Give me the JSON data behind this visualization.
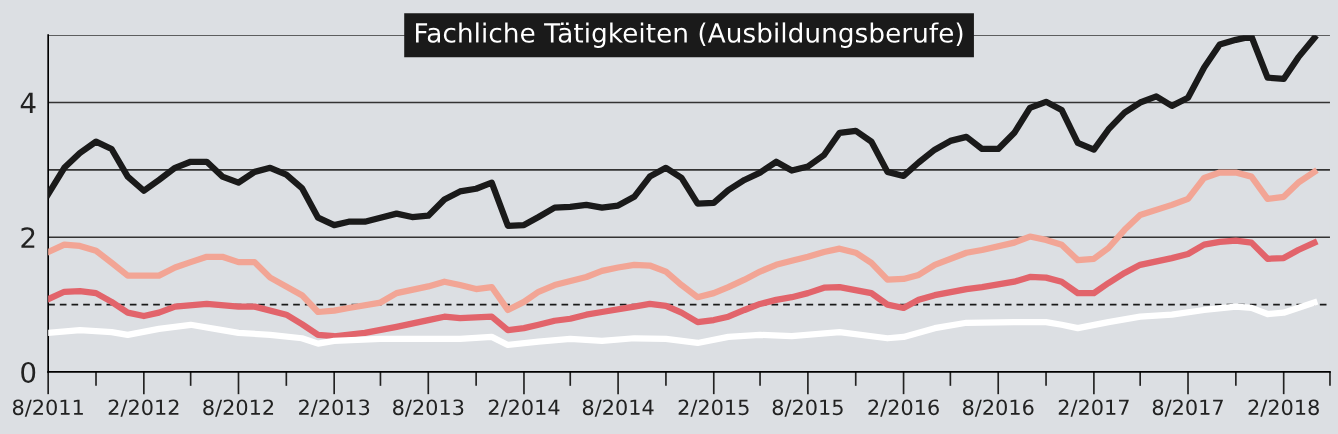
{
  "chart_data": {
    "type": "line",
    "title": "Fachliche Tätigkeiten (Ausbildungsberufe)",
    "x": [
      "2011-08",
      "2011-09",
      "2011-10",
      "2011-11",
      "2011-12",
      "2012-01",
      "2012-02",
      "2012-03",
      "2012-04",
      "2012-05",
      "2012-06",
      "2012-07",
      "2012-08",
      "2012-09",
      "2012-10",
      "2012-11",
      "2012-12",
      "2013-01",
      "2013-02",
      "2013-03",
      "2013-04",
      "2013-05",
      "2013-06",
      "2013-07",
      "2013-08",
      "2013-09",
      "2013-10",
      "2013-11",
      "2013-12",
      "2014-01",
      "2014-02",
      "2014-03",
      "2014-04",
      "2014-05",
      "2014-06",
      "2014-07",
      "2014-08",
      "2014-09",
      "2014-10",
      "2014-11",
      "2014-12",
      "2015-01",
      "2015-02",
      "2015-03",
      "2015-04",
      "2015-05",
      "2015-06",
      "2015-07",
      "2015-08",
      "2015-09",
      "2015-10",
      "2015-11",
      "2015-12",
      "2016-01",
      "2016-02",
      "2016-03",
      "2016-04",
      "2016-05",
      "2016-06",
      "2016-07",
      "2016-08",
      "2016-09",
      "2016-10",
      "2016-11",
      "2016-12",
      "2017-01",
      "2017-02",
      "2017-03",
      "2017-04",
      "2017-05",
      "2017-06",
      "2017-07",
      "2017-08",
      "2017-09",
      "2017-10",
      "2017-11",
      "2017-12",
      "2018-01",
      "2018-02",
      "2018-03",
      "2018-04"
    ],
    "series": [
      {
        "color": "#1a1a1a",
        "values": [
          2.64,
          3.03,
          3.25,
          3.42,
          3.31,
          2.9,
          2.69,
          2.85,
          3.03,
          3.12,
          3.12,
          2.9,
          2.81,
          2.97,
          3.03,
          2.93,
          2.73,
          2.29,
          2.18,
          2.23,
          2.23,
          2.29,
          2.35,
          2.3,
          2.32,
          2.56,
          2.68,
          2.72,
          2.81,
          2.17,
          2.18,
          2.3,
          2.44,
          2.45,
          2.48,
          2.44,
          2.47,
          2.6,
          2.9,
          3.03,
          2.88,
          2.5,
          2.51,
          2.7,
          2.85,
          2.96,
          3.12,
          2.99,
          3.05,
          3.22,
          3.55,
          3.58,
          3.42,
          2.97,
          2.91,
          3.11,
          3.3,
          3.43,
          3.49,
          3.31,
          3.31,
          3.55,
          3.92,
          4.01,
          3.89,
          3.4,
          3.3,
          3.6,
          3.85,
          4.0,
          4.09,
          3.95,
          4.07,
          4.52,
          4.86,
          4.93,
          4.98,
          4.37,
          4.35,
          4.67,
          4.96
        ]
      },
      {
        "color": "#f2a595",
        "x": [
          "2011-08",
          "2011-09",
          "2011-10",
          "2011-11",
          "2011-12",
          "2012-01",
          "2012-03",
          "2012-04",
          "2012-05",
          "2012-06",
          "2012-07",
          "2012-08",
          "2012-09",
          "2012-10",
          "2012-12",
          "2013-01",
          "2013-02",
          "2013-03",
          "2013-05",
          "2013-06",
          "2013-08",
          "2013-09",
          "2013-10",
          "2013-11",
          "2013-12",
          "2014-01",
          "2014-02",
          "2014-03",
          "2014-04",
          "2014-06",
          "2014-07",
          "2014-08",
          "2014-09",
          "2014-10",
          "2014-11",
          "2014-12",
          "2015-01",
          "2015-02",
          "2015-03",
          "2015-04",
          "2015-05",
          "2015-06",
          "2015-07",
          "2015-08",
          "2015-09",
          "2015-10",
          "2015-11",
          "2015-12",
          "2016-01",
          "2016-02",
          "2016-03",
          "2016-04",
          "2016-06",
          "2016-07",
          "2016-09",
          "2016-10",
          "2016-11",
          "2016-12",
          "2017-01",
          "2017-02",
          "2017-03",
          "2017-04",
          "2017-05",
          "2017-07",
          "2017-08",
          "2017-09",
          "2017-10",
          "2017-11",
          "2017-12",
          "2018-01",
          "2018-02",
          "2018-03",
          "2018-04"
        ],
        "values": [
          1.78,
          1.89,
          1.87,
          1.8,
          1.62,
          1.43,
          1.43,
          1.55,
          1.63,
          1.71,
          1.71,
          1.63,
          1.63,
          1.4,
          1.14,
          0.89,
          0.91,
          0.95,
          1.03,
          1.17,
          1.27,
          1.34,
          1.29,
          1.23,
          1.26,
          0.92,
          1.04,
          1.19,
          1.29,
          1.41,
          1.5,
          1.55,
          1.59,
          1.58,
          1.49,
          1.29,
          1.11,
          1.17,
          1.26,
          1.37,
          1.49,
          1.59,
          1.65,
          1.71,
          1.78,
          1.83,
          1.77,
          1.62,
          1.37,
          1.38,
          1.44,
          1.59,
          1.77,
          1.81,
          1.92,
          2.01,
          1.96,
          1.89,
          1.66,
          1.68,
          1.84,
          2.11,
          2.33,
          2.48,
          2.57,
          2.88,
          2.96,
          2.96,
          2.9,
          2.57,
          2.6,
          2.81,
          2.97
        ]
      },
      {
        "color": "#e2646b",
        "x": [
          "2011-08",
          "2011-09",
          "2011-10",
          "2011-11",
          "2011-12",
          "2012-01",
          "2012-02",
          "2012-03",
          "2012-04",
          "2012-06",
          "2012-08",
          "2012-09",
          "2012-11",
          "2012-12",
          "2013-01",
          "2013-02",
          "2013-04",
          "2013-06",
          "2013-08",
          "2013-09",
          "2013-10",
          "2013-12",
          "2014-01",
          "2014-02",
          "2014-03",
          "2014-04",
          "2014-05",
          "2014-06",
          "2014-07",
          "2014-09",
          "2014-10",
          "2014-11",
          "2014-12",
          "2015-01",
          "2015-02",
          "2015-03",
          "2015-04",
          "2015-05",
          "2015-06",
          "2015-07",
          "2015-08",
          "2015-09",
          "2015-10",
          "2015-12",
          "2016-01",
          "2016-02",
          "2016-03",
          "2016-04",
          "2016-06",
          "2016-07",
          "2016-09",
          "2016-10",
          "2016-11",
          "2016-12",
          "2017-01",
          "2017-02",
          "2017-03",
          "2017-04",
          "2017-05",
          "2017-07",
          "2017-08",
          "2017-09",
          "2017-10",
          "2017-11",
          "2017-12",
          "2018-01",
          "2018-02",
          "2018-03",
          "2018-04"
        ],
        "values": [
          1.08,
          1.19,
          1.2,
          1.17,
          1.04,
          0.88,
          0.83,
          0.88,
          0.97,
          1.01,
          0.97,
          0.97,
          0.85,
          0.71,
          0.55,
          0.53,
          0.58,
          0.67,
          0.77,
          0.82,
          0.8,
          0.82,
          0.62,
          0.65,
          0.7,
          0.76,
          0.79,
          0.85,
          0.89,
          0.97,
          1.01,
          0.98,
          0.88,
          0.74,
          0.77,
          0.82,
          0.92,
          1.01,
          1.07,
          1.11,
          1.17,
          1.25,
          1.26,
          1.17,
          1.0,
          0.95,
          1.07,
          1.14,
          1.23,
          1.26,
          1.34,
          1.41,
          1.4,
          1.34,
          1.17,
          1.17,
          1.32,
          1.47,
          1.59,
          1.69,
          1.75,
          1.89,
          1.93,
          1.95,
          1.92,
          1.68,
          1.69,
          1.81,
          1.92
        ]
      },
      {
        "color": "#ffffff",
        "x": [
          "2011-08",
          "2011-10",
          "2011-12",
          "2012-01",
          "2012-03",
          "2012-05",
          "2012-07",
          "2012-08",
          "2012-10",
          "2012-12",
          "2013-01",
          "2013-02",
          "2013-05",
          "2013-07",
          "2013-09",
          "2013-10",
          "2013-12",
          "2014-01",
          "2014-03",
          "2014-05",
          "2014-07",
          "2014-09",
          "2014-11",
          "2015-01",
          "2015-03",
          "2015-05",
          "2015-07",
          "2015-10",
          "2016-01",
          "2016-02",
          "2016-04",
          "2016-06",
          "2016-09",
          "2016-11",
          "2016-12",
          "2017-01",
          "2017-03",
          "2017-05",
          "2017-07",
          "2017-09",
          "2017-11",
          "2017-12",
          "2018-01",
          "2018-02",
          "2018-04"
        ],
        "values": [
          0.58,
          0.62,
          0.59,
          0.55,
          0.64,
          0.7,
          0.62,
          0.58,
          0.55,
          0.5,
          0.42,
          0.46,
          0.49,
          0.49,
          0.49,
          0.49,
          0.52,
          0.4,
          0.45,
          0.49,
          0.46,
          0.5,
          0.49,
          0.43,
          0.52,
          0.55,
          0.53,
          0.59,
          0.5,
          0.52,
          0.65,
          0.73,
          0.74,
          0.74,
          0.7,
          0.65,
          0.74,
          0.82,
          0.85,
          0.92,
          0.97,
          0.95,
          0.86,
          0.88,
          1.03
        ]
      }
    ],
    "xlim": [
      "2011-08",
      "2018-05"
    ],
    "xticks": [
      {
        "value": "2011-08",
        "label": "8/2011"
      },
      {
        "value": "2011-11",
        "label": null
      },
      {
        "value": "2012-02",
        "label": "2/2012"
      },
      {
        "value": "2012-05",
        "label": null
      },
      {
        "value": "2012-08",
        "label": "8/2012"
      },
      {
        "value": "2012-11",
        "label": null
      },
      {
        "value": "2013-02",
        "label": "2/2013"
      },
      {
        "value": "2013-05",
        "label": null
      },
      {
        "value": "2013-08",
        "label": "8/2013"
      },
      {
        "value": "2013-11",
        "label": null
      },
      {
        "value": "2014-02",
        "label": "2/2014"
      },
      {
        "value": "2014-05",
        "label": null
      },
      {
        "value": "2014-08",
        "label": "8/2014"
      },
      {
        "value": "2014-11",
        "label": null
      },
      {
        "value": "2015-02",
        "label": "2/2015"
      },
      {
        "value": "2015-05",
        "label": null
      },
      {
        "value": "2015-08",
        "label": "8/2015"
      },
      {
        "value": "2015-11",
        "label": null
      },
      {
        "value": "2016-02",
        "label": "2/2016"
      },
      {
        "value": "2016-05",
        "label": null
      },
      {
        "value": "2016-08",
        "label": "8/2016"
      },
      {
        "value": "2016-11",
        "label": null
      },
      {
        "value": "2017-02",
        "label": "2/2017"
      },
      {
        "value": "2017-05",
        "label": null
      },
      {
        "value": "2017-08",
        "label": "8/2017"
      },
      {
        "value": "2017-11",
        "label": null
      },
      {
        "value": "2018-02",
        "label": "2/2018"
      },
      {
        "value": "2018-05",
        "label": null
      }
    ],
    "ylim": [
      0,
      5
    ],
    "yticks": [
      0,
      2,
      {
        "value": 3,
        "label": null
      },
      4,
      {
        "value": 5,
        "label": null
      }
    ],
    "grid": "y",
    "ref_lines": [
      {
        "axis": "y",
        "value": 1,
        "color": "#1a1a1a",
        "line_style": "dashed"
      }
    ],
    "marker": "none",
    "line_style": "solid"
  }
}
